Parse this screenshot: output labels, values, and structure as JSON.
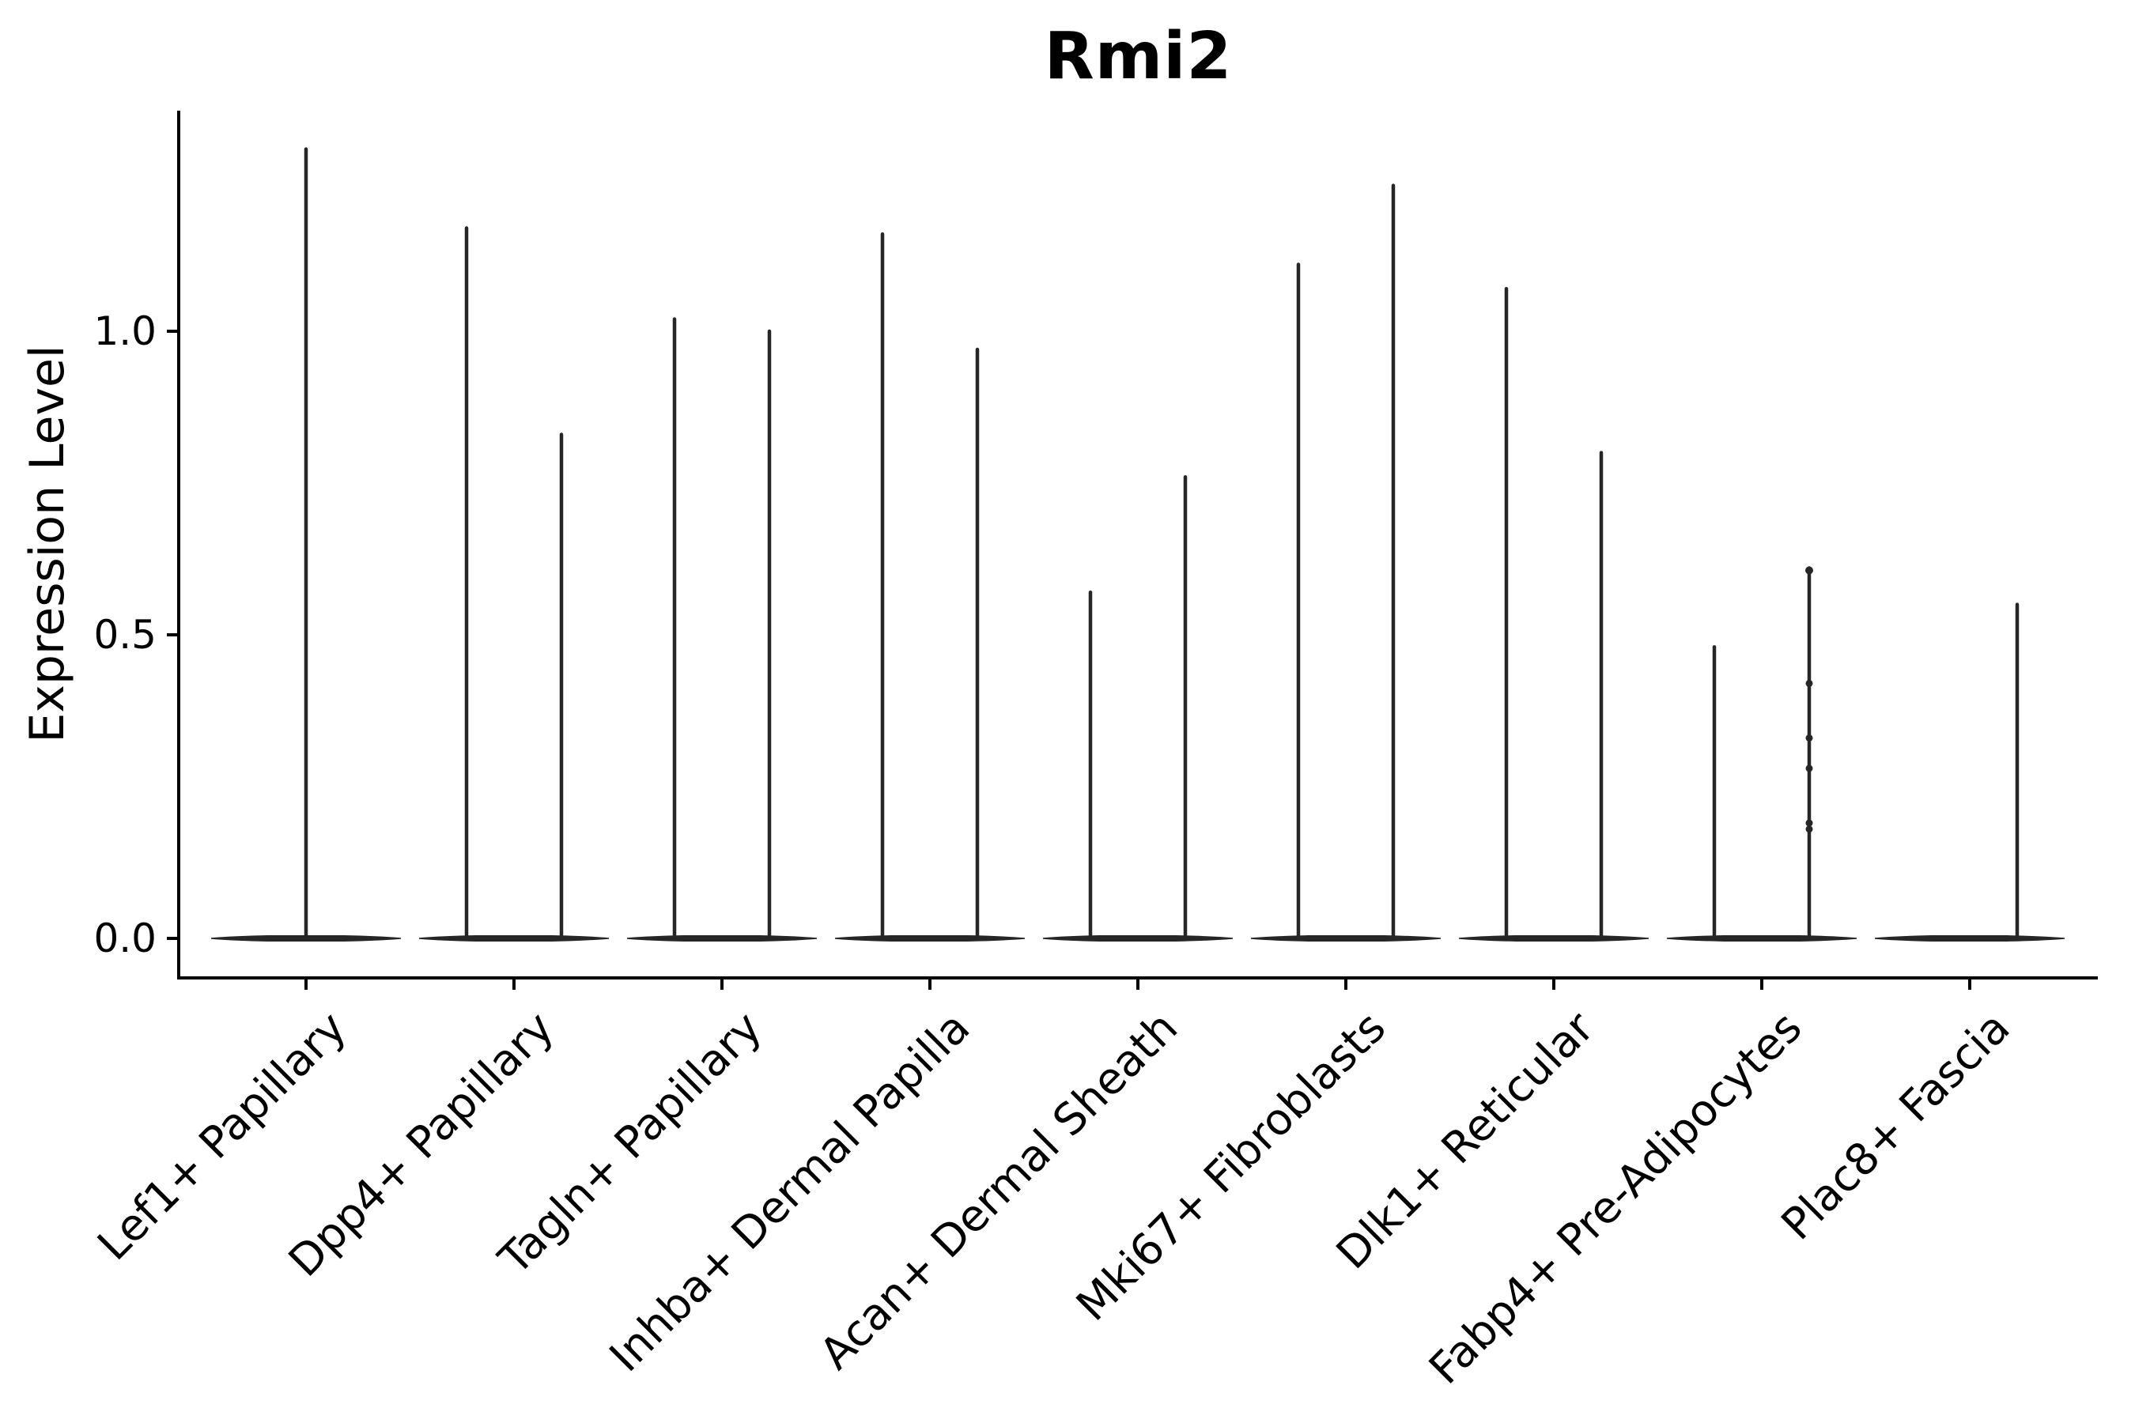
{
  "title": "Rmi2",
  "y_axis": {
    "label": "Expression Level"
  },
  "chart_data": {
    "type": "violin",
    "title": "Rmi2",
    "xlabel": "",
    "ylabel": "Expression Level",
    "ylim": [
      -0.07,
      1.37
    ],
    "y_ticks": [
      0.0,
      0.5,
      1.0
    ],
    "y_tick_labels": [
      "0.0",
      "0.5",
      "1.0"
    ],
    "grid": false,
    "legend": "none",
    "style_note": "single-cell expression violin plot; near-all-zero distributions render as flat slivers at 0 with thin spikes up to each group's maximum; two dodged violins per category unless noted",
    "categories": [
      {
        "label": "Lef1+ Papillary",
        "violins": [
          {
            "position": "center",
            "max": 1.3
          }
        ]
      },
      {
        "label": "Dpp4+ Papillary",
        "violins": [
          {
            "position": "left",
            "max": 1.17
          },
          {
            "position": "right",
            "max": 0.83
          }
        ]
      },
      {
        "label": "Tagln+ Papillary",
        "violins": [
          {
            "position": "left",
            "max": 1.02
          },
          {
            "position": "right",
            "max": 1.0
          }
        ]
      },
      {
        "label": "Inhba+ Dermal Papilla",
        "violins": [
          {
            "position": "left",
            "max": 1.16
          },
          {
            "position": "right",
            "max": 0.97
          }
        ]
      },
      {
        "label": "Acan+ Dermal Sheath",
        "violins": [
          {
            "position": "left",
            "max": 0.57
          },
          {
            "position": "right",
            "max": 0.76
          }
        ]
      },
      {
        "label": "Mki67+ Fibroblasts",
        "violins": [
          {
            "position": "left",
            "max": 1.11
          },
          {
            "position": "right",
            "max": 1.24
          }
        ]
      },
      {
        "label": "Dlk1+ Reticular",
        "violins": [
          {
            "position": "left",
            "max": 1.07
          },
          {
            "position": "right",
            "max": 0.8
          }
        ]
      },
      {
        "label": "Fabp4+ Pre-Adipocytes",
        "violins": [
          {
            "position": "left",
            "max": 0.48
          },
          {
            "position": "right",
            "max": 0.61,
            "points": [
              0.42,
              0.33,
              0.28,
              0.19,
              0.18
            ]
          }
        ]
      },
      {
        "label": "Plac8+ Fascia",
        "violins": [
          {
            "position": "left",
            "max": 0.0
          },
          {
            "position": "right",
            "max": 0.55
          }
        ]
      }
    ],
    "colors": {
      "violin": "#262626",
      "axis": "#000000",
      "text": "#000000",
      "background": "#ffffff"
    }
  }
}
